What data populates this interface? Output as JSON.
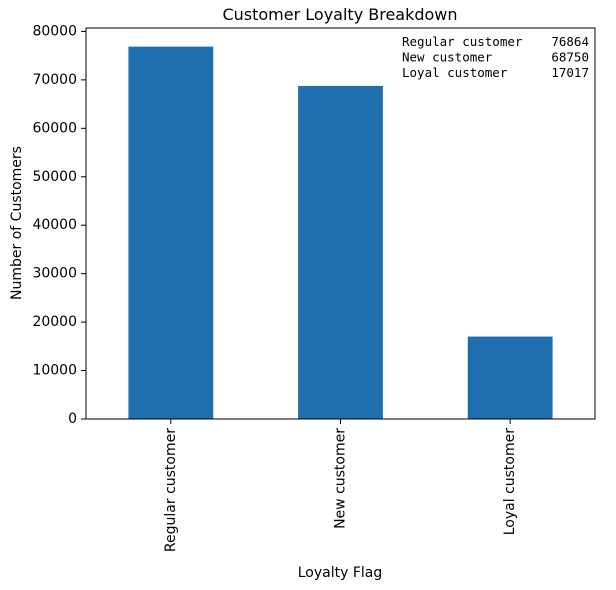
{
  "chart_data": {
    "type": "bar",
    "title": "Customer Loyalty Breakdown",
    "xlabel": "Loyalty Flag",
    "ylabel": "Number of Customers",
    "categories": [
      "Regular customer",
      "New customer",
      "Loyal customer"
    ],
    "values": [
      76864,
      68750,
      17017
    ],
    "ylim": [
      0,
      80707
    ],
    "yticks": [
      0,
      10000,
      20000,
      30000,
      40000,
      50000,
      60000,
      70000,
      80000
    ],
    "bar_color": "#1f6fb0",
    "grid": false,
    "annotation": {
      "placement": "top-right",
      "rows": [
        {
          "label": "Regular customer",
          "value": "76864"
        },
        {
          "label": "New customer",
          "value": "68750"
        },
        {
          "label": "Loyal customer",
          "value": "17017"
        }
      ]
    }
  }
}
